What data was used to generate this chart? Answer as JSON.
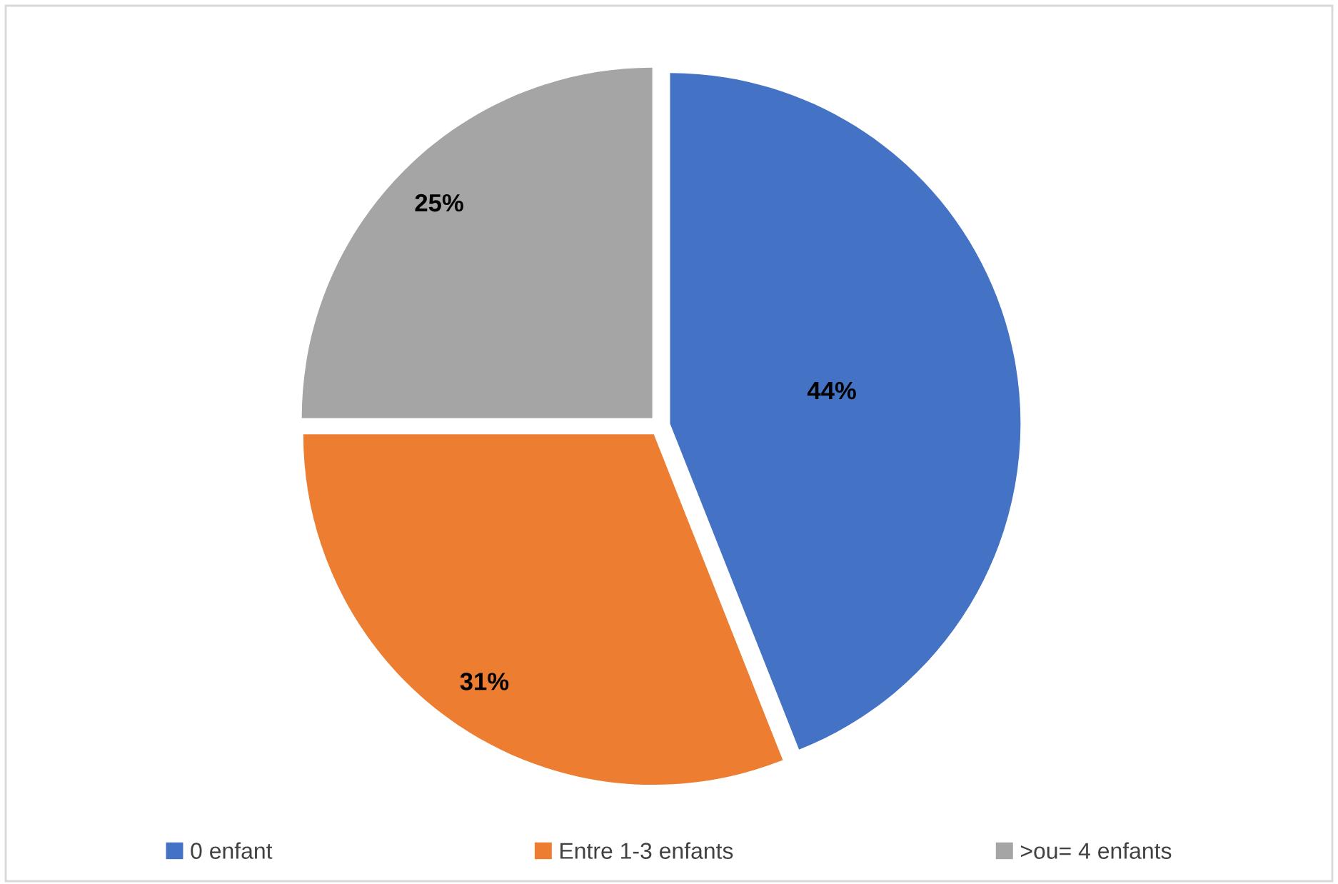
{
  "chart_data": {
    "type": "pie",
    "categories": [
      "0 enfant",
      "Entre 1-3 enfants",
      ">ou= 4 enfants"
    ],
    "values": [
      44,
      31,
      25
    ],
    "colors": [
      "#4472c4",
      "#ed7d31",
      "#a5a5a5"
    ],
    "value_labels": [
      "44%",
      "31%",
      "25%"
    ],
    "legend": "bottom"
  }
}
